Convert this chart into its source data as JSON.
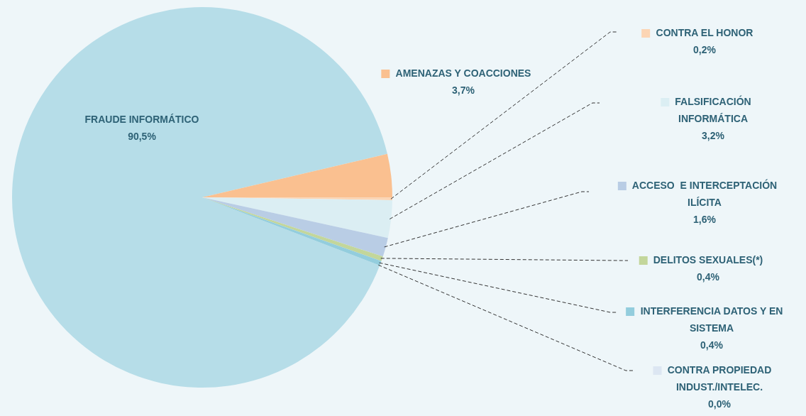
{
  "chart_data": {
    "type": "pie",
    "categories": [
      "FRAUDE INFORMÁTICO",
      "AMENAZAS Y COACCIONES",
      "CONTRA EL HONOR",
      "FALSIFICACIÓN INFORMÁTICA",
      "ACCESO  E INTERCEPTACIÓN ILÍCITA",
      "DELITOS SEXUALES(*)",
      "INTERFERENCIA DATOS Y EN SISTEMA",
      "CONTRA PROPIEDAD INDUST./INTELEC."
    ],
    "values": [
      90.5,
      3.7,
      0.2,
      3.2,
      1.6,
      0.4,
      0.4,
      0.0
    ],
    "value_labels": [
      "90,5%",
      "3,7%",
      "0,2%",
      "3,2%",
      "1,6%",
      "0,4%",
      "0,4%",
      "0,0%"
    ],
    "legend": "right",
    "colors": [
      "#b6dde8",
      "#fac090",
      "#fcd5b4",
      "#dbeef3",
      "#b9cde5",
      "#c3d69b",
      "#93cddd",
      "#dce6f2"
    ]
  }
}
